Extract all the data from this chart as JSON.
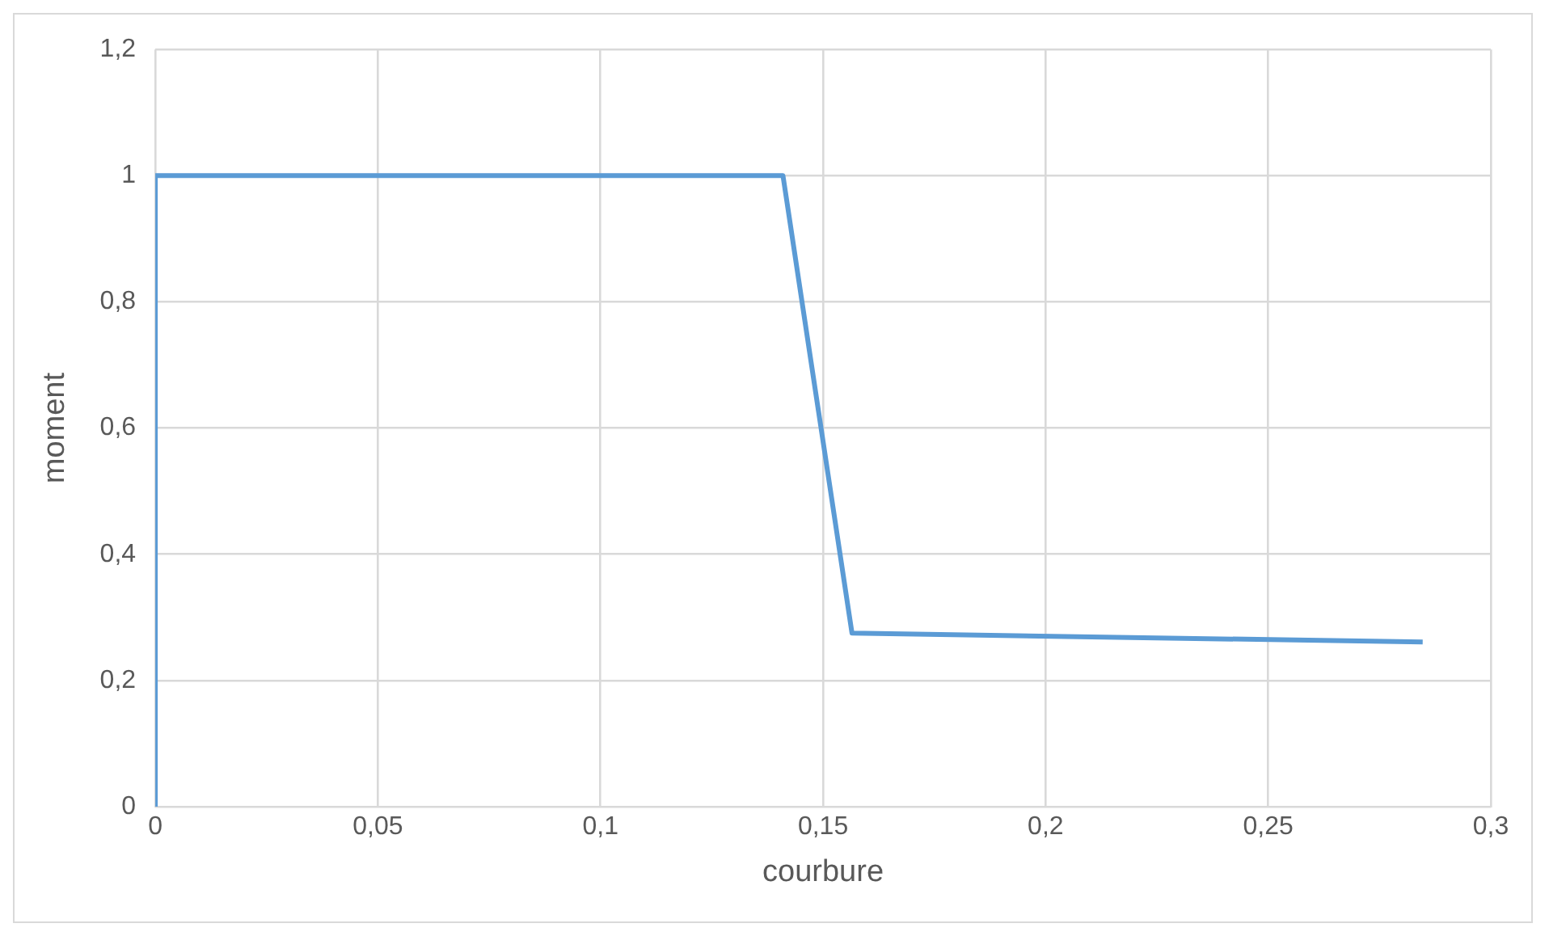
{
  "chart_data": {
    "type": "line",
    "xlabel": "courbure",
    "ylabel": "moment",
    "series": [
      {
        "color": "#5b9bd5",
        "x": [
          0,
          0,
          0.141,
          0.1565,
          0.2847
        ],
        "values": [
          0,
          1,
          1,
          0.275,
          0.261
        ]
      }
    ],
    "xlim": [
      0,
      0.3
    ],
    "xticks": [
      0,
      {
        "value": 0.05,
        "label": "0,05"
      },
      {
        "value": 0.1,
        "label": "0,1"
      },
      {
        "value": 0.15,
        "label": "0,15"
      },
      {
        "value": 0.2,
        "label": "0,2"
      },
      {
        "value": 0.25,
        "label": "0,25"
      },
      {
        "value": 0.3,
        "label": "0,3"
      }
    ],
    "ylim": [
      0,
      1.2
    ],
    "yticks": [
      0,
      {
        "value": 0.2,
        "label": "0,2"
      },
      {
        "value": 0.4,
        "label": "0,4"
      },
      {
        "value": 0.6,
        "label": "0,6"
      },
      {
        "value": 0.8,
        "label": "0,8"
      },
      1,
      {
        "value": 1.2,
        "label": "1,2"
      }
    ],
    "grid": true,
    "legend": false,
    "marker": "none",
    "line_style": "solid"
  }
}
